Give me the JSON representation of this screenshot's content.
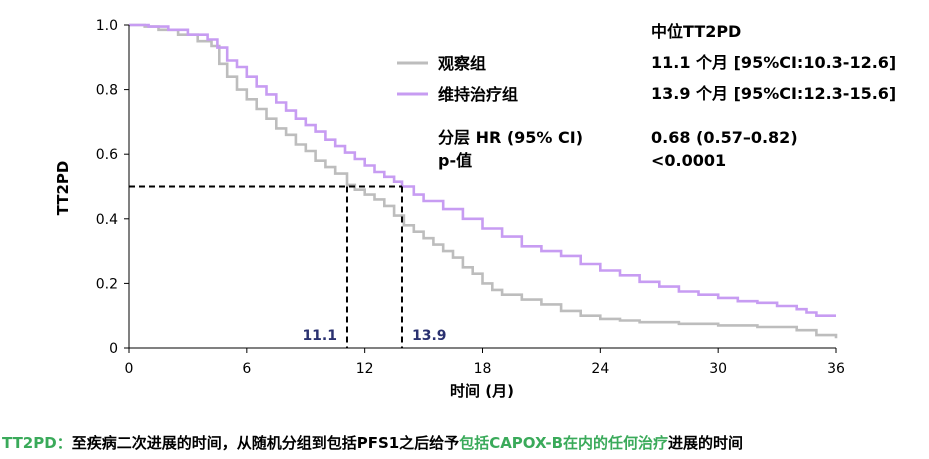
{
  "chart_data": {
    "type": "line",
    "ylabel": "TT2PD",
    "xlabel": "时间 (月)",
    "xlim": [
      0,
      36
    ],
    "ylim": [
      0,
      1.0
    ],
    "xticks": [
      "0",
      "6",
      "12",
      "18",
      "24",
      "30",
      "36"
    ],
    "yticks": [
      "0",
      "0.2",
      "0.4",
      "0.6",
      "0.8",
      "1.0"
    ],
    "series": [
      {
        "name": "观察组",
        "color": "#bdbdbd",
        "x": [
          0,
          0.8,
          1.5,
          2.5,
          3.5,
          4.2,
          4.6,
          5.0,
          5.5,
          6.0,
          6.5,
          7.0,
          7.5,
          8.0,
          8.5,
          9.0,
          9.5,
          10.0,
          10.5,
          11.1,
          11.5,
          12.0,
          12.5,
          13.0,
          13.5,
          14.0,
          14.5,
          15.0,
          15.5,
          16.0,
          16.5,
          17.0,
          17.5,
          18.0,
          18.5,
          19.0,
          20.0,
          21.0,
          22.0,
          23.0,
          24.0,
          25.0,
          26.0,
          28.0,
          30.0,
          32.0,
          34.0,
          35.0,
          36.0
        ],
        "y": [
          1.0,
          0.995,
          0.985,
          0.97,
          0.95,
          0.935,
          0.88,
          0.84,
          0.8,
          0.77,
          0.74,
          0.71,
          0.68,
          0.66,
          0.63,
          0.61,
          0.58,
          0.56,
          0.54,
          0.505,
          0.49,
          0.475,
          0.46,
          0.44,
          0.41,
          0.38,
          0.36,
          0.34,
          0.32,
          0.3,
          0.28,
          0.25,
          0.23,
          0.2,
          0.18,
          0.165,
          0.15,
          0.135,
          0.115,
          0.1,
          0.09,
          0.085,
          0.08,
          0.075,
          0.07,
          0.065,
          0.055,
          0.04,
          0.03
        ]
      },
      {
        "name": "维持治疗组",
        "color": "#c79cf2",
        "x": [
          0,
          1.0,
          2.0,
          3.0,
          4.0,
          4.5,
          5.0,
          5.5,
          6.0,
          6.5,
          7.0,
          7.5,
          8.0,
          8.5,
          9.0,
          9.5,
          10.0,
          10.5,
          11.0,
          11.5,
          12.0,
          12.5,
          13.0,
          13.5,
          13.9,
          14.5,
          15.0,
          16.0,
          17.0,
          18.0,
          19.0,
          20.0,
          21.0,
          22.0,
          23.0,
          24.0,
          25.0,
          26.0,
          27.0,
          28.0,
          29.0,
          30.0,
          31.0,
          32.0,
          33.0,
          34.0,
          34.5,
          35.0,
          36.0
        ],
        "y": [
          1.0,
          0.995,
          0.985,
          0.97,
          0.955,
          0.93,
          0.89,
          0.87,
          0.84,
          0.81,
          0.785,
          0.76,
          0.735,
          0.71,
          0.69,
          0.67,
          0.645,
          0.625,
          0.605,
          0.585,
          0.565,
          0.545,
          0.53,
          0.515,
          0.5,
          0.475,
          0.455,
          0.43,
          0.4,
          0.37,
          0.345,
          0.315,
          0.3,
          0.285,
          0.26,
          0.24,
          0.225,
          0.205,
          0.19,
          0.175,
          0.165,
          0.155,
          0.145,
          0.14,
          0.13,
          0.12,
          0.11,
          0.1,
          0.1
        ]
      }
    ],
    "medians": [
      {
        "label": "11.1",
        "x": 11.1,
        "y": 0.5
      },
      {
        "label": "13.9",
        "x": 13.9,
        "y": 0.5
      }
    ],
    "stats_title": "中位TT2PD",
    "stats_rows": [
      {
        "label": "观察组",
        "value": "11.1 个月  [95%CI:10.3-12.6]"
      },
      {
        "label": "维持治疗组",
        "value": "13.9 个月  [95%CI:12.3-15.6]"
      }
    ],
    "hr_label": "分层 HR (95% CI)",
    "hr_value": "0.68 (0.57–0.82)",
    "p_label": "p-值",
    "p_value": "<0.0001"
  },
  "footnote": {
    "term": "TT2PD：",
    "text_a": "至疾病二次进展的时间，从随机分组到包括PFS1之后给予",
    "highlight": "包括CAPOX-B在内的任何治疗",
    "text_b": "进展的时间",
    "highlight_color": "#3aaa5a"
  }
}
